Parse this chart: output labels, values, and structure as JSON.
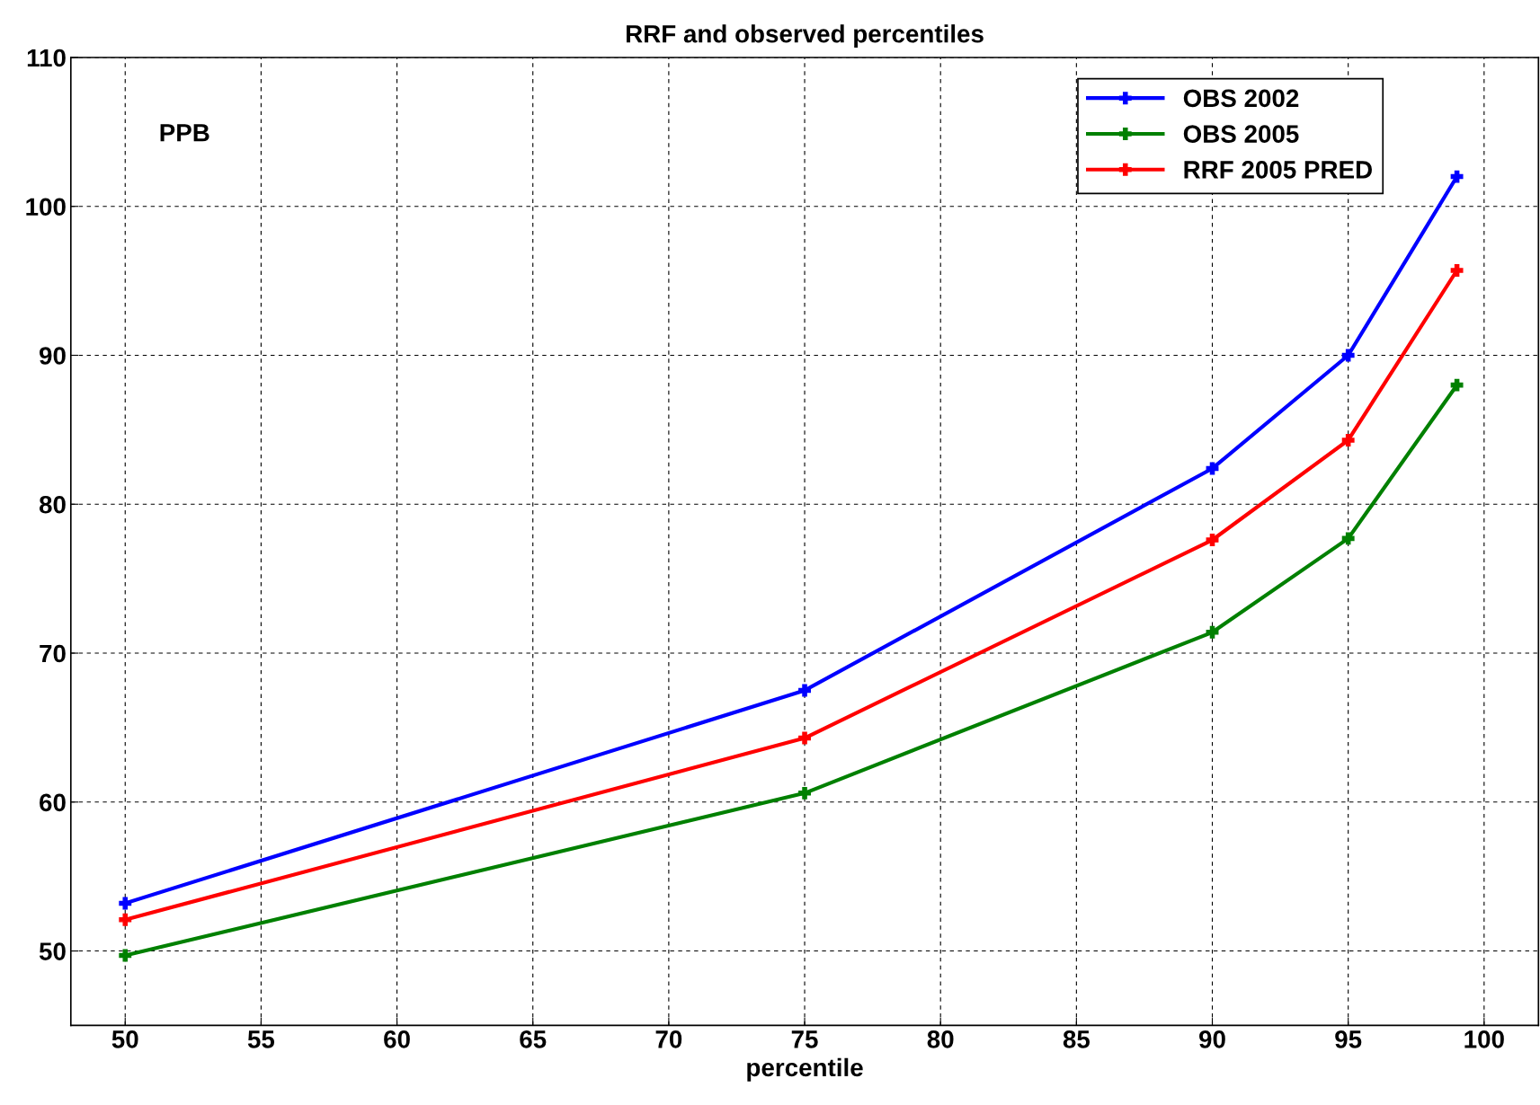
{
  "chart_data": {
    "type": "line",
    "title": "RRF and observed percentiles",
    "xlabel": "percentile",
    "annotations": [
      "PPB"
    ],
    "x": [
      50,
      75,
      90,
      95,
      99
    ],
    "series": [
      {
        "name": "OBS 2002",
        "color": "#0000ff",
        "values": [
          53.2,
          67.5,
          82.4,
          90.0,
          102.0
        ]
      },
      {
        "name": "OBS 2005",
        "color": "#008000",
        "values": [
          49.7,
          60.6,
          71.4,
          77.7,
          88.0
        ]
      },
      {
        "name": "RRF 2005 PRED",
        "color": "#ff0000",
        "values": [
          52.1,
          64.3,
          77.6,
          84.3,
          95.7
        ]
      }
    ],
    "xlim": [
      48,
      102
    ],
    "xticks": [
      50,
      55,
      60,
      65,
      70,
      75,
      80,
      85,
      90,
      95,
      100
    ],
    "ylim": [
      45,
      110
    ],
    "yticks": [
      50,
      60,
      70,
      80,
      90,
      100,
      110
    ],
    "grid": true,
    "legend": "top right",
    "marker": "cross",
    "line_style": "solid"
  }
}
